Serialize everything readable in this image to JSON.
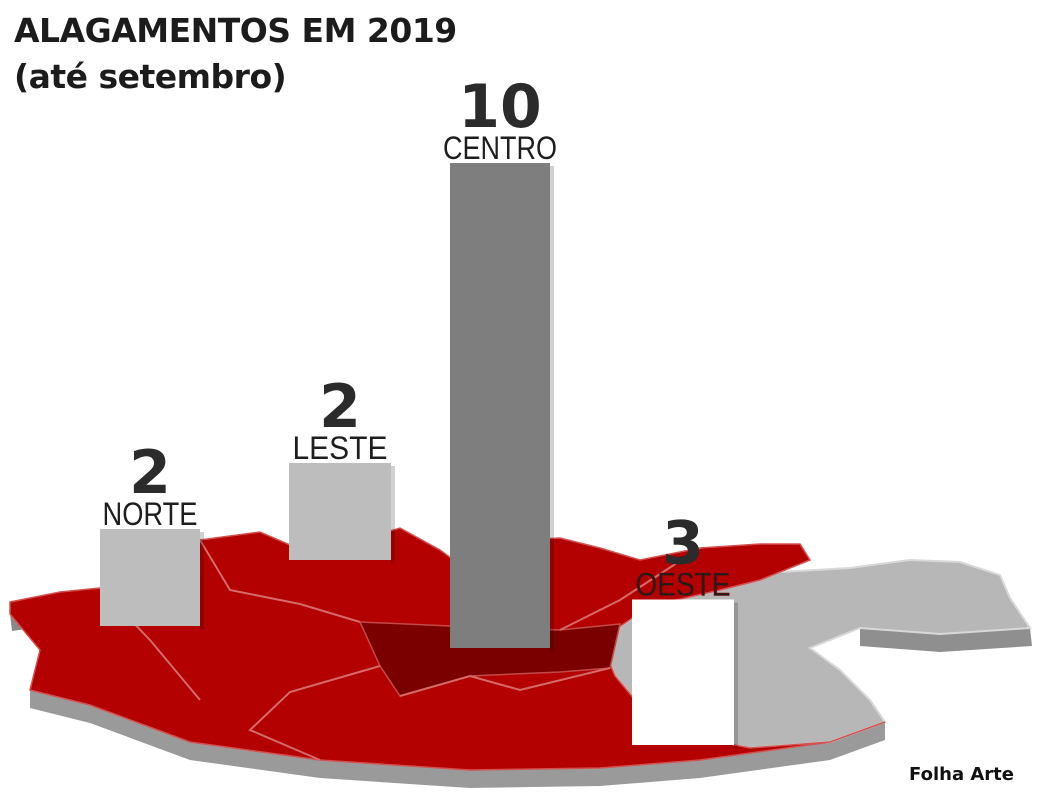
{
  "title_line1": "ALAGAMENTOS EM 2019",
  "title_line2": "(até setembro)",
  "credit": "Folha Arte",
  "colors": {
    "map_red": "#b30000",
    "map_dark_red": "#7a0000",
    "map_gray": "#b5b5b5",
    "bar_light": "#bdbdbd",
    "bar_center": "#7e7e7e",
    "bar_white": "#ffffff"
  },
  "chart_data": {
    "type": "bar",
    "categories": [
      "NORTE",
      "LESTE",
      "CENTRO",
      "OESTE"
    ],
    "values": [
      2,
      2,
      10,
      3
    ],
    "title": "ALAGAMENTOS EM 2019",
    "subtitle": "(até setembro)",
    "xlabel": "",
    "ylabel": "",
    "grid": false,
    "legend": "none"
  }
}
